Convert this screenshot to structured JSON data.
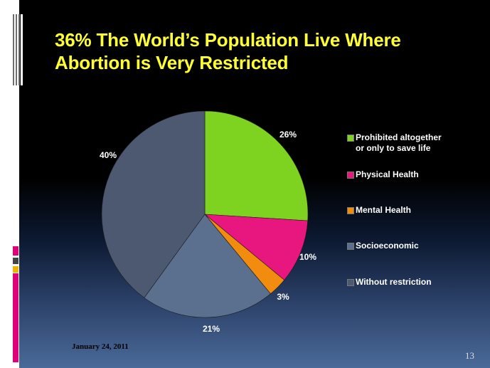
{
  "slide": {
    "title_line1": "36% The World’s Population Live Where",
    "title_line2": "Abortion is Very Restricted",
    "date": "January  24, 2011",
    "page_number": "13",
    "title_color": "#ffff33",
    "side_square_colors": [
      "#e0007a",
      "#444444",
      "#f0b400",
      "#e0007a"
    ]
  },
  "chart_data": {
    "type": "pie",
    "title": "",
    "start_angle_deg": 0,
    "direction": "clockwise",
    "slices": [
      {
        "label": "Prohibited altogether or only to save life",
        "label_lines": [
          "Prohibited altogether",
          "or only to save life"
        ],
        "value": 26,
        "display": "26%",
        "color": "#7ed321"
      },
      {
        "label": "Physical Health",
        "label_lines": [
          "Physical Health"
        ],
        "value": 10,
        "display": "10%",
        "color": "#e8177f"
      },
      {
        "label": "Mental Health",
        "label_lines": [
          "Mental Health"
        ],
        "value": 3,
        "display": "3%",
        "color": "#f28c0f"
      },
      {
        "label": "Socioeconomic",
        "label_lines": [
          "Socioeconomic"
        ],
        "value": 21,
        "display": "21%",
        "color": "#5b708f"
      },
      {
        "label": "Without restriction",
        "label_lines": [
          "Without restriction"
        ],
        "value": 40,
        "display": "40%",
        "color": "#4c5970"
      }
    ],
    "legend": {
      "position": "right"
    },
    "data_labels": true
  }
}
